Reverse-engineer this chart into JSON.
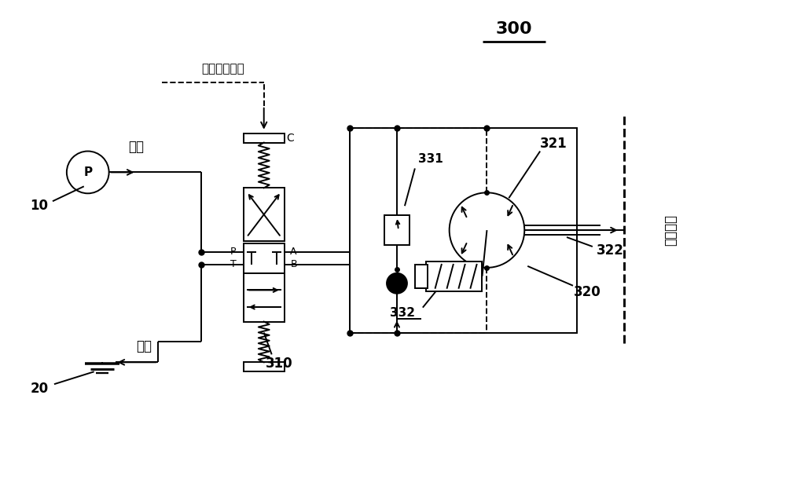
{
  "title": "300",
  "bg_color": "#ffffff",
  "line_color": "#000000",
  "label_10": "10",
  "label_20": "20",
  "label_310": "310",
  "label_320": "320",
  "label_321": "321",
  "label_322": "322",
  "label_331": "331",
  "label_332": "332",
  "label_supply": "供油",
  "label_return": "回油",
  "label_control": "－－控制指令",
  "label_drive": "驱动舱门",
  "label_C": "C",
  "label_A": "A",
  "label_B": "B",
  "label_P_port": "P",
  "label_T_port": "T"
}
